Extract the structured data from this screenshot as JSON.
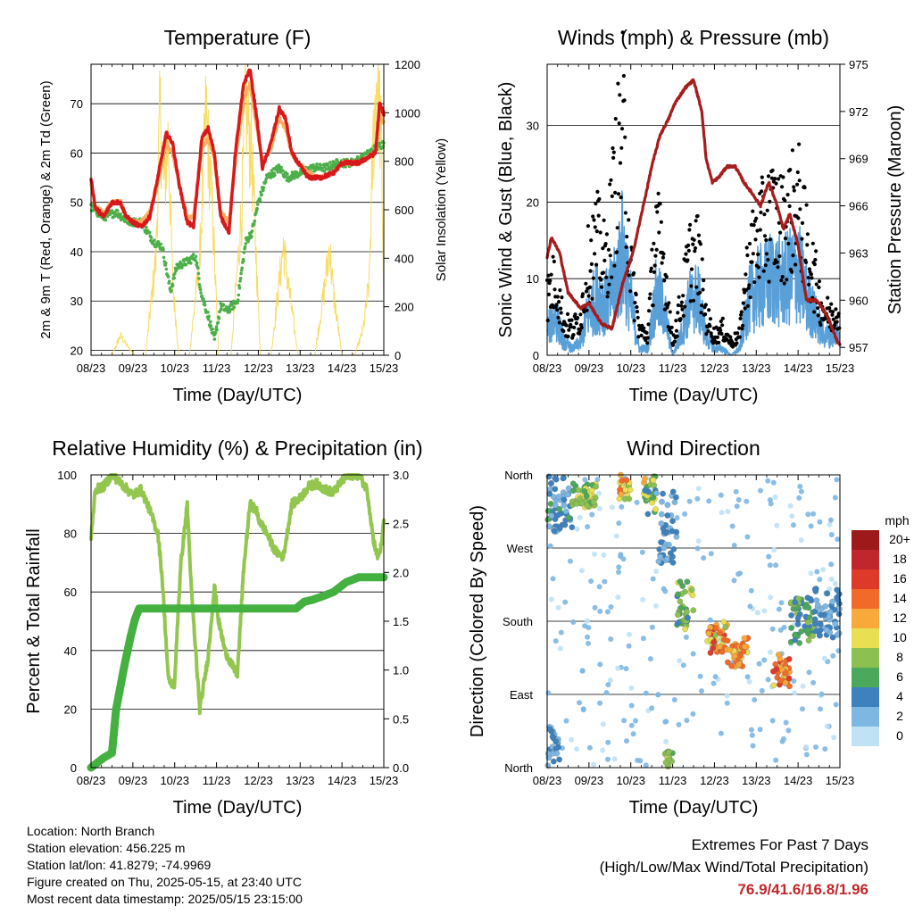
{
  "colors": {
    "temp_red": "#d7191c",
    "temp_orange": "#fdae61",
    "dewpoint_green": "#4daf4a",
    "solar_yellow": "#f6d64a",
    "gust_black": "#000000",
    "wind_blue": "#5aa0d8",
    "pressure_maroon": "#a51c1c",
    "rh_lightgreen": "#92c64e",
    "precip_green": "#43b040",
    "extremes_red": "#c0272d"
  },
  "info": {
    "location": "Location: North Branch",
    "elevation": "Station elevation: 456.225 m",
    "latlon": "Station lat/lon: 41.8279; -74.9969",
    "created": "Figure created on Thu, 2025-05-15, at 23:40 UTC",
    "recent": "Most recent data timestamp: 2025/05/15 23:15:00"
  },
  "extremes": {
    "title": "Extremes For Past 7 Days",
    "subtitle": "(High/Low/Max Wind/Total Precipitation)",
    "values": "76.9/41.6/16.8/1.96"
  },
  "time_ticks": [
    "08/23",
    "09/23",
    "10/23",
    "11/23",
    "12/23",
    "13/23",
    "14/23",
    "15/23"
  ],
  "chart_data": [
    {
      "type": "line",
      "title": "Temperature (F)",
      "xlabel": "Time (Day/UTC)",
      "ylabel": "2m & 9m T (Red, Orange) & 2m Td (Green)",
      "y2label": "Solar Insolation (Yellow)",
      "ylim": [
        19,
        78
      ],
      "y2lim": [
        0,
        1200
      ],
      "yticks": [
        20,
        30,
        40,
        50,
        60,
        70
      ],
      "y2ticks": [
        0,
        200,
        400,
        600,
        800,
        1000,
        1200
      ],
      "x_unit": "days since 08/23",
      "series": [
        {
          "key": "temp_red",
          "x": [
            0,
            0.1,
            0.3,
            0.5,
            0.7,
            0.85,
            1.0,
            1.2,
            1.4,
            1.55,
            1.8,
            1.95,
            2.1,
            2.3,
            2.45,
            2.65,
            2.8,
            2.95,
            3.1,
            3.3,
            3.45,
            3.65,
            3.8,
            3.95,
            4.1,
            4.3,
            4.5,
            4.65,
            4.8,
            4.95,
            5.2,
            5.5,
            5.8,
            6.0,
            6.2,
            6.4,
            6.6,
            6.8,
            6.9,
            7.0
          ],
          "y": [
            55,
            49,
            47,
            50,
            50,
            47,
            46,
            45,
            47,
            53,
            64,
            62,
            54,
            46,
            45,
            63,
            65,
            60,
            47,
            44,
            60,
            74,
            77,
            68,
            57,
            62,
            69,
            67,
            60,
            58,
            55,
            55,
            56,
            58,
            58,
            58,
            59,
            60,
            70,
            68
          ]
        },
        {
          "key": "temp_orange",
          "x": [
            0,
            0.1,
            0.3,
            0.5,
            0.7,
            0.85,
            1.0,
            1.2,
            1.4,
            1.55,
            1.8,
            1.95,
            2.1,
            2.3,
            2.45,
            2.65,
            2.8,
            2.95,
            3.1,
            3.3,
            3.45,
            3.65,
            3.8,
            3.95,
            4.1,
            4.3,
            4.5,
            4.65,
            4.8,
            4.95,
            5.2,
            5.5,
            5.8,
            6.0,
            6.2,
            6.4,
            6.6,
            6.8,
            6.9,
            7.0
          ],
          "y": [
            54,
            49,
            48,
            50,
            50,
            47,
            46,
            46,
            48,
            52,
            62,
            60,
            54,
            47,
            47,
            61,
            63,
            59,
            48,
            46,
            58,
            71,
            74,
            66,
            58,
            61,
            67,
            65,
            60,
            58,
            56,
            55,
            56,
            58,
            58,
            58,
            59,
            60,
            68,
            66
          ]
        },
        {
          "key": "dewpoint_green",
          "x": [
            0,
            0.3,
            0.6,
            0.9,
            1.2,
            1.5,
            1.7,
            1.9,
            2.05,
            2.3,
            2.5,
            2.65,
            2.8,
            2.95,
            3.1,
            3.25,
            3.5,
            3.7,
            3.85,
            4.0,
            4.2,
            4.5,
            4.7,
            5.0,
            5.3,
            5.6,
            5.9,
            6.2,
            6.5,
            6.8,
            7.0
          ],
          "y": [
            49,
            47,
            48,
            46,
            46,
            42,
            41,
            32,
            37,
            38,
            39,
            31,
            27,
            22,
            29,
            28,
            30,
            42,
            44,
            50,
            55,
            57,
            55,
            56,
            57,
            57,
            58,
            58,
            59,
            61,
            62
          ]
        },
        {
          "key": "solar_yellow",
          "axis": "y2",
          "x": [
            0.5,
            0.7,
            0.9,
            1.05,
            1.3,
            1.55,
            1.65,
            1.75,
            1.85,
            1.95,
            2.1,
            2.35,
            2.6,
            2.75,
            2.9,
            3.05,
            3.35,
            3.6,
            3.7,
            3.85,
            4.05,
            4.3,
            4.5,
            4.6,
            4.75,
            4.95,
            5.35,
            5.6,
            5.7,
            5.8,
            6.0,
            6.3,
            6.5,
            6.65,
            6.75,
            6.85,
            6.95,
            7.0
          ],
          "y": [
            0,
            80,
            30,
            0,
            0,
            400,
            1000,
            700,
            900,
            300,
            0,
            0,
            400,
            1000,
            600,
            0,
            0,
            600,
            1050,
            800,
            0,
            0,
            300,
            450,
            250,
            0,
            0,
            300,
            450,
            250,
            0,
            0,
            100,
            300,
            900,
            1200,
            800,
            200
          ]
        }
      ]
    },
    {
      "type": "line",
      "title": "Winds (mph) & Pressure (mb)",
      "xlabel": "Time (Day/UTC)",
      "ylabel": "Sonic Wind & Gust (Blue, Black)",
      "y2label": "Station Pressure (Maroon)",
      "ylim": [
        0,
        38
      ],
      "y2lim": [
        956.5,
        975
      ],
      "yticks": [
        0,
        10,
        20,
        30
      ],
      "y2ticks": [
        957,
        960,
        963,
        966,
        969,
        972,
        975
      ],
      "series": [
        {
          "key": "gust_black",
          "x": [
            0,
            0.2,
            0.4,
            0.6,
            0.8,
            1.0,
            1.2,
            1.4,
            1.6,
            1.8,
            2.0,
            2.2,
            2.4,
            2.6,
            2.8,
            3.0,
            3.2,
            3.4,
            3.6,
            3.8,
            4.0,
            4.2,
            4.4,
            4.6,
            4.8,
            5.0,
            5.2,
            5.4,
            5.6,
            5.8,
            6.0,
            6.2,
            6.4,
            6.6,
            6.8,
            7.0
          ],
          "y": [
            9,
            12,
            5,
            4,
            6,
            15,
            18,
            14,
            25,
            36,
            14,
            4,
            3,
            20,
            14,
            2,
            8,
            15,
            16,
            6,
            3,
            4,
            2,
            3,
            14,
            18,
            20,
            22,
            20,
            22,
            24,
            17,
            12,
            7,
            6,
            8
          ]
        },
        {
          "key": "wind_blue",
          "x": [
            0,
            0.2,
            0.4,
            0.6,
            0.8,
            1.0,
            1.2,
            1.4,
            1.6,
            1.8,
            2.0,
            2.2,
            2.4,
            2.6,
            2.8,
            3.0,
            3.2,
            3.4,
            3.6,
            3.8,
            4.0,
            4.2,
            4.4,
            4.6,
            4.8,
            5.0,
            5.2,
            5.4,
            5.6,
            5.8,
            6.0,
            6.2,
            6.4,
            6.6,
            6.8,
            7.0
          ],
          "y": [
            4,
            6,
            2,
            1,
            2,
            7,
            9,
            8,
            10,
            16,
            8,
            1,
            1,
            9,
            7,
            0,
            3,
            8,
            9,
            3,
            1,
            1,
            0,
            1,
            8,
            10,
            11,
            12,
            11,
            12,
            13,
            9,
            6,
            3,
            3,
            4
          ]
        },
        {
          "key": "pressure_maroon",
          "axis": "y2",
          "x": [
            0,
            0.1,
            0.3,
            0.5,
            0.8,
            1.0,
            1.3,
            1.55,
            1.8,
            2.05,
            2.3,
            2.5,
            2.7,
            2.9,
            3.05,
            3.3,
            3.5,
            3.7,
            3.8,
            3.95,
            4.1,
            4.3,
            4.5,
            4.7,
            4.9,
            5.1,
            5.3,
            5.5,
            5.65,
            5.8,
            6.0,
            6.2,
            6.45,
            6.7,
            6.95,
            7.0
          ],
          "y": [
            962.7,
            964,
            963,
            960.5,
            959.5,
            959.8,
            958.5,
            958.2,
            961,
            963,
            966,
            968.5,
            970.5,
            971.5,
            972.5,
            973.5,
            974,
            972,
            969,
            967.5,
            967.8,
            968.5,
            968.5,
            967.5,
            966.8,
            966,
            967.5,
            966,
            964.5,
            965.5,
            963.5,
            960,
            960,
            959,
            957.3,
            957.2
          ]
        }
      ]
    },
    {
      "type": "line",
      "title": "Relative Humidity (%) & Precipitation (in)",
      "xlabel": "Time (Day/UTC)",
      "ylabel": "Percent & Total Rainfall",
      "ylim": [
        0,
        100
      ],
      "y2lim": [
        0,
        3.0
      ],
      "yticks": [
        0,
        20,
        40,
        60,
        80,
        100
      ],
      "y2ticks": [
        "0.0",
        "0.5",
        "1.0",
        "1.5",
        "2.0",
        "2.5",
        "3.0"
      ],
      "series": [
        {
          "key": "rh_lightgreen",
          "x": [
            0,
            0.1,
            0.3,
            0.5,
            0.8,
            1.0,
            1.2,
            1.4,
            1.6,
            1.7,
            1.85,
            2.0,
            2.05,
            2.15,
            2.3,
            2.4,
            2.5,
            2.6,
            2.8,
            2.95,
            3.05,
            3.2,
            3.4,
            3.5,
            3.65,
            3.8,
            3.95,
            4.0,
            4.2,
            4.4,
            4.6,
            4.8,
            5.0,
            5.2,
            5.4,
            5.6,
            5.8,
            6.0,
            6.2,
            6.4,
            6.6,
            6.75,
            6.85,
            6.95,
            7.0
          ],
          "y": [
            78,
            95,
            96,
            100,
            96,
            93,
            95,
            88,
            80,
            65,
            30,
            28,
            45,
            70,
            90,
            60,
            40,
            20,
            38,
            62,
            50,
            40,
            34,
            32,
            68,
            90,
            88,
            85,
            80,
            74,
            72,
            90,
            92,
            96,
            97,
            95,
            94,
            98,
            100,
            100,
            95,
            78,
            72,
            76,
            85
          ]
        },
        {
          "key": "precip_green",
          "axis": "y2",
          "x": [
            0,
            0.3,
            0.5,
            0.6,
            0.8,
            0.95,
            1.05,
            1.15,
            1.3,
            1.5,
            1.8,
            2.2,
            2.7,
            3.2,
            3.8,
            4.5,
            4.9,
            5.1,
            5.3,
            5.5,
            5.8,
            6.1,
            6.4,
            6.7,
            7.0
          ],
          "y": [
            0,
            0.1,
            0.15,
            0.6,
            1.05,
            1.35,
            1.52,
            1.63,
            1.63,
            1.63,
            1.63,
            1.63,
            1.63,
            1.63,
            1.63,
            1.63,
            1.63,
            1.7,
            1.72,
            1.75,
            1.8,
            1.9,
            1.95,
            1.95,
            1.95
          ]
        }
      ]
    },
    {
      "type": "scatter",
      "title": "Wind Direction",
      "xlabel": "Time (Day/UTC)",
      "ylabel": "Direction (Colored By Speed)",
      "ylim": [
        0,
        360
      ],
      "ytick_labels": [
        "North",
        "East",
        "South",
        "West",
        "North"
      ],
      "colorbar": {
        "title": "mph",
        "labels": [
          "20+",
          "18",
          "16",
          "14",
          "12",
          "10",
          "8",
          "6",
          "4",
          "2",
          "0"
        ],
        "colors": [
          "#9e1a1a",
          "#c0272d",
          "#dd3a2a",
          "#f26a2a",
          "#f9a83a",
          "#e8df52",
          "#8cc152",
          "#4ca85a",
          "#3d82bf",
          "#7db7e2",
          "#bfe2f5"
        ]
      },
      "clusters": [
        {
          "x": [
            0.0,
            0.6
          ],
          "dir": [
            290,
            360
          ],
          "speed": [
            2,
            6
          ]
        },
        {
          "x": [
            0.6,
            1.2
          ],
          "dir": [
            320,
            350
          ],
          "speed": [
            6,
            10
          ]
        },
        {
          "x": [
            1.7,
            2.0
          ],
          "dir": [
            330,
            360
          ],
          "speed": [
            8,
            16
          ]
        },
        {
          "x": [
            2.3,
            2.6
          ],
          "dir": [
            310,
            360
          ],
          "speed": [
            4,
            12
          ]
        },
        {
          "x": [
            2.6,
            3.1
          ],
          "dir": [
            250,
            340
          ],
          "speed": [
            1,
            5
          ]
        },
        {
          "x": [
            3.1,
            3.5
          ],
          "dir": [
            170,
            230
          ],
          "speed": [
            4,
            10
          ]
        },
        {
          "x": [
            3.8,
            4.3
          ],
          "dir": [
            140,
            180
          ],
          "speed": [
            8,
            16
          ]
        },
        {
          "x": [
            4.3,
            4.8
          ],
          "dir": [
            120,
            160
          ],
          "speed": [
            10,
            15
          ]
        },
        {
          "x": [
            5.4,
            5.8
          ],
          "dir": [
            100,
            140
          ],
          "speed": [
            10,
            16
          ]
        },
        {
          "x": [
            5.8,
            6.4
          ],
          "dir": [
            150,
            210
          ],
          "speed": [
            3,
            8
          ]
        },
        {
          "x": [
            6.4,
            7.0
          ],
          "dir": [
            160,
            220
          ],
          "speed": [
            2,
            5
          ]
        },
        {
          "x": [
            0.0,
            0.3
          ],
          "dir": [
            0,
            50
          ],
          "speed": [
            2,
            4
          ]
        },
        {
          "x": [
            2.8,
            3.0
          ],
          "dir": [
            0,
            20
          ],
          "speed": [
            6,
            10
          ]
        }
      ]
    }
  ]
}
